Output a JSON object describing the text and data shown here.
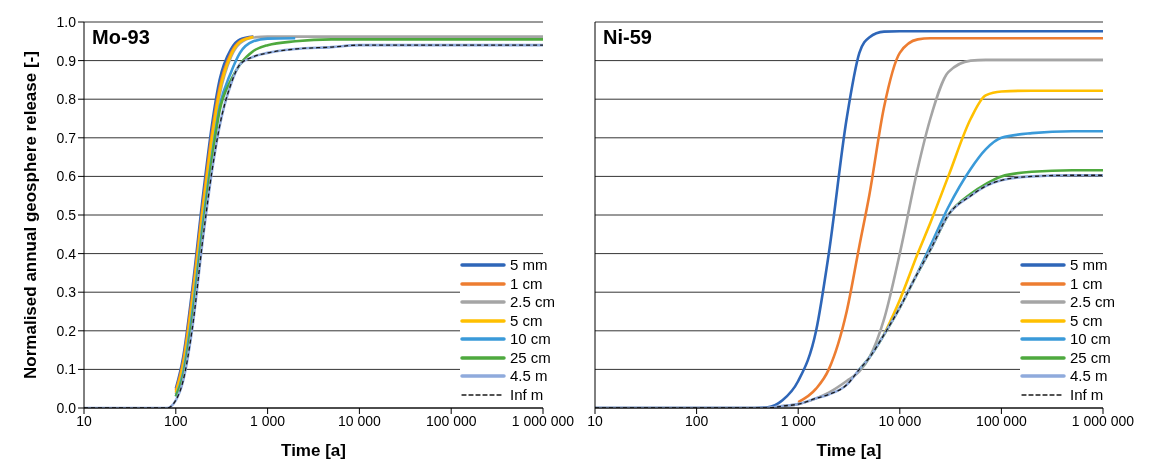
{
  "chart_data": [
    {
      "type": "line",
      "title": "Mo-93",
      "xlabel": "Time [a]",
      "ylabel": "Normalised annual geosphere release [-]",
      "log": "x",
      "grid": "y",
      "legend": "bottom right",
      "xlim": [
        10,
        1000000
      ],
      "xticks": [
        {
          "value": 10,
          "label": "10"
        },
        {
          "value": 100,
          "label": "100"
        },
        {
          "value": 1000,
          "label": "1 000"
        },
        {
          "value": 10000,
          "label": "10 000"
        },
        {
          "value": 100000,
          "label": "100 000"
        },
        {
          "value": 1000000,
          "label": "1 000 000"
        }
      ],
      "ylim": [
        0,
        1
      ],
      "yticks": [
        {
          "value": 0,
          "label": "0.0"
        },
        {
          "value": 0.1,
          "label": "0.1"
        },
        {
          "value": 0.2,
          "label": "0.2"
        },
        {
          "value": 0.3,
          "label": "0.3"
        },
        {
          "value": 0.4,
          "label": "0.4"
        },
        {
          "value": 0.5,
          "label": "0.5"
        },
        {
          "value": 0.6,
          "label": "0.6"
        },
        {
          "value": 0.7,
          "label": "0.7"
        },
        {
          "value": 0.8,
          "label": "0.8"
        },
        {
          "value": 0.9,
          "label": "0.9"
        },
        {
          "value": 1,
          "label": "1.0"
        }
      ],
      "x": [
        10,
        70,
        80,
        100,
        120,
        150,
        200,
        250,
        300,
        400,
        500,
        700,
        1000,
        2000,
        5000,
        10000,
        1000000
      ],
      "series": [
        {
          "name": "5 mm",
          "color": "#2e66b8",
          "values": [
            null,
            null,
            null,
            0.05,
            0.13,
            0.3,
            0.56,
            0.74,
            0.85,
            0.93,
            0.955,
            0.962,
            null,
            null,
            null,
            null,
            null
          ]
        },
        {
          "name": "1 cm",
          "color": "#ed7d31",
          "values": [
            null,
            null,
            null,
            0.045,
            0.12,
            0.285,
            0.54,
            0.72,
            0.83,
            0.92,
            0.95,
            0.962,
            null,
            null,
            null,
            null,
            null
          ]
        },
        {
          "name": "2.5 cm",
          "color": "#a5a5a5",
          "values": [
            null,
            null,
            null,
            0.035,
            0.1,
            0.26,
            0.51,
            0.69,
            0.81,
            0.91,
            0.945,
            0.96,
            0.962,
            0.962,
            0.962,
            0.962,
            0.962
          ]
        },
        {
          "name": "5 cm",
          "color": "#ffc000",
          "values": [
            null,
            null,
            null,
            0.04,
            0.11,
            0.27,
            0.525,
            0.705,
            0.82,
            0.915,
            0.948,
            0.961,
            null,
            null,
            null,
            null,
            null
          ]
        },
        {
          "name": "10 cm",
          "color": "#3a9ad9",
          "values": [
            null,
            null,
            null,
            0.03,
            0.09,
            0.24,
            0.49,
            0.66,
            0.78,
            0.87,
            0.92,
            0.95,
            0.957,
            0.958,
            null,
            null,
            null
          ]
        },
        {
          "name": "25 cm",
          "color": "#4ea93e",
          "values": [
            null,
            null,
            null,
            0.03,
            0.08,
            0.22,
            0.47,
            0.65,
            0.77,
            0.85,
            0.89,
            0.925,
            0.94,
            0.95,
            0.955,
            0.955,
            0.955
          ]
        },
        {
          "name": "4.5 m",
          "color": "#8faadc",
          "values": [
            0,
            0,
            0,
            0.02,
            0.07,
            0.2,
            0.45,
            0.62,
            0.73,
            0.84,
            0.89,
            0.91,
            0.92,
            0.93,
            0.935,
            0.94,
            0.94
          ]
        },
        {
          "name": "Inf m",
          "color": "#1a1a1a",
          "line_style": "dashed",
          "values": [
            0,
            0,
            0,
            0.02,
            0.07,
            0.2,
            0.45,
            0.62,
            0.73,
            0.84,
            0.89,
            0.91,
            0.92,
            0.93,
            0.935,
            0.94,
            0.94
          ]
        }
      ]
    },
    {
      "type": "line",
      "title": "Ni-59",
      "xlabel": "Time [a]",
      "log": "x",
      "grid": "y",
      "legend": "bottom right",
      "tick_labels": "x",
      "xlim": [
        10,
        1000000
      ],
      "xticks": [
        {
          "value": 10,
          "label": "10"
        },
        {
          "value": 100,
          "label": "100"
        },
        {
          "value": 1000,
          "label": "1 000"
        },
        {
          "value": 10000,
          "label": "10 000"
        },
        {
          "value": 100000,
          "label": "100 000"
        },
        {
          "value": 1000000,
          "label": "1 000 000"
        }
      ],
      "ylim": [
        0,
        1
      ],
      "yticks": [
        0,
        0.1,
        0.2,
        0.3,
        0.4,
        0.5,
        0.6,
        0.7,
        0.8,
        0.9,
        1
      ],
      "x": [
        10,
        300,
        500,
        700,
        1000,
        1500,
        2000,
        3000,
        4000,
        5000,
        7000,
        10000,
        15000,
        20000,
        30000,
        50000,
        70000,
        100000,
        200000,
        500000,
        1000000
      ],
      "series": [
        {
          "name": "5 mm",
          "color": "#2e66b8",
          "values": [
            0,
            0,
            0.002,
            0.02,
            0.07,
            0.2,
            0.4,
            0.75,
            0.92,
            0.96,
            0.975,
            0.976,
            0.976,
            0.976,
            0.976,
            0.976,
            0.976,
            0.976,
            0.976,
            0.976,
            0.976
          ]
        },
        {
          "name": "1 cm",
          "color": "#ed7d31",
          "values": [
            null,
            null,
            null,
            null,
            0.015,
            0.05,
            0.1,
            0.25,
            0.42,
            0.55,
            0.78,
            0.92,
            0.955,
            0.958,
            0.958,
            0.958,
            0.958,
            0.958,
            0.958,
            0.958,
            0.958
          ]
        },
        {
          "name": "2.5 cm",
          "color": "#a5a5a5",
          "values": [
            0,
            0,
            0,
            0.005,
            0.01,
            0.025,
            0.04,
            0.07,
            0.095,
            0.13,
            0.23,
            0.4,
            0.62,
            0.75,
            0.87,
            0.9,
            0.902,
            0.902,
            0.902,
            0.902,
            0.902
          ]
        },
        {
          "name": "5 cm",
          "color": "#ffc000",
          "values": [
            null,
            null,
            null,
            null,
            null,
            null,
            null,
            null,
            null,
            null,
            0.19,
            0.28,
            0.4,
            0.48,
            0.6,
            0.75,
            0.81,
            0.82,
            0.822,
            0.822,
            0.822
          ]
        },
        {
          "name": "10 cm",
          "color": "#3a9ad9",
          "values": [
            null,
            null,
            null,
            null,
            null,
            null,
            null,
            null,
            null,
            null,
            null,
            null,
            0.35,
            0.42,
            0.52,
            0.62,
            0.67,
            0.7,
            0.712,
            0.717,
            0.717
          ]
        },
        {
          "name": "25 cm",
          "color": "#4ea93e",
          "values": [
            null,
            null,
            null,
            null,
            null,
            null,
            null,
            null,
            0.1,
            0.13,
            0.19,
            0.26,
            0.35,
            0.41,
            0.5,
            0.555,
            0.58,
            0.6,
            0.612,
            0.616,
            0.616
          ]
        },
        {
          "name": "4.5 m",
          "color": "#8faadc",
          "values": [
            0,
            0,
            0,
            0.005,
            0.01,
            0.025,
            0.035,
            0.06,
            0.1,
            0.13,
            0.19,
            0.26,
            0.35,
            0.41,
            0.5,
            0.55,
            0.575,
            0.59,
            0.6,
            0.603,
            0.603
          ]
        },
        {
          "name": "Inf m",
          "color": "#1a1a1a",
          "line_style": "dashed",
          "values": [
            0,
            0,
            0,
            0.005,
            0.01,
            0.025,
            0.035,
            0.06,
            0.1,
            0.13,
            0.19,
            0.26,
            0.35,
            0.41,
            0.5,
            0.55,
            0.575,
            0.59,
            0.6,
            0.603,
            0.603
          ]
        }
      ]
    }
  ]
}
